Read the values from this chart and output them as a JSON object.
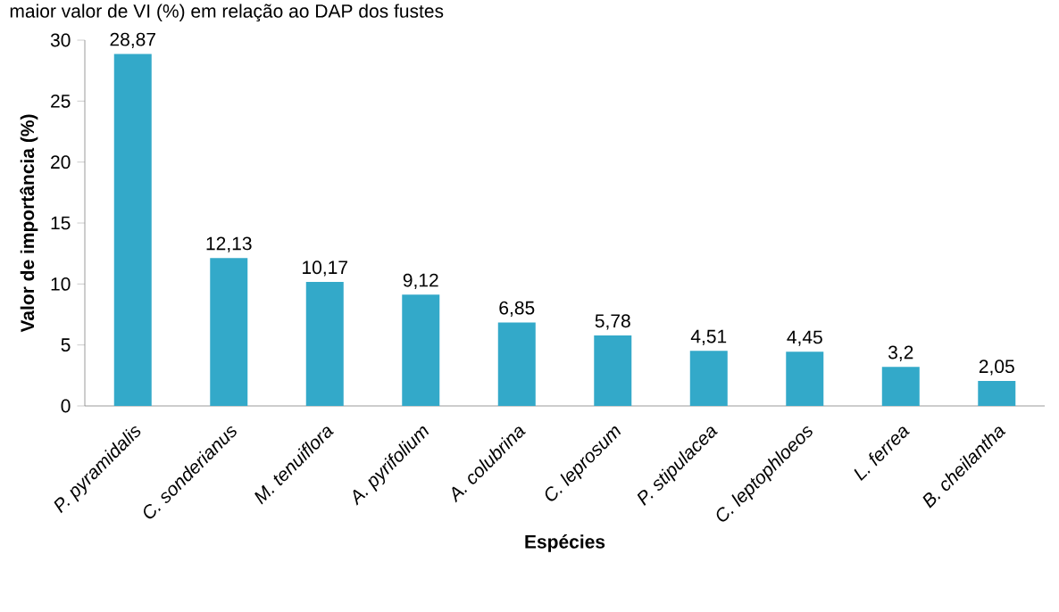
{
  "chart_data": {
    "type": "bar",
    "categories": [
      "P. pyramidalis",
      "C. sonderianus",
      "M. tenuiflora",
      "A. pyrifolium",
      "A. colubrina",
      "C. leprosum",
      "P. stipulacea",
      "C. leptophloeos",
      "L. ferrea",
      "B. cheilantha"
    ],
    "values": [
      28.87,
      12.13,
      10.17,
      9.12,
      6.85,
      5.78,
      4.51,
      4.45,
      3.2,
      2.05
    ],
    "value_labels": [
      "28,87",
      "12,13",
      "10,17",
      "9,12",
      "6,85",
      "5,78",
      "4,51",
      "4,45",
      "3,2",
      "2,05"
    ],
    "color": "#33a9c9",
    "xlabel": "Espécies",
    "ylabel": "Valor de importância (%)",
    "ylim": [
      0,
      30
    ],
    "yticks": [
      0,
      5,
      10,
      15,
      20,
      25,
      30
    ],
    "annotations": [
      "maior valor de VI (%) em relação ao DAP dos fustes"
    ],
    "grid": false
  }
}
